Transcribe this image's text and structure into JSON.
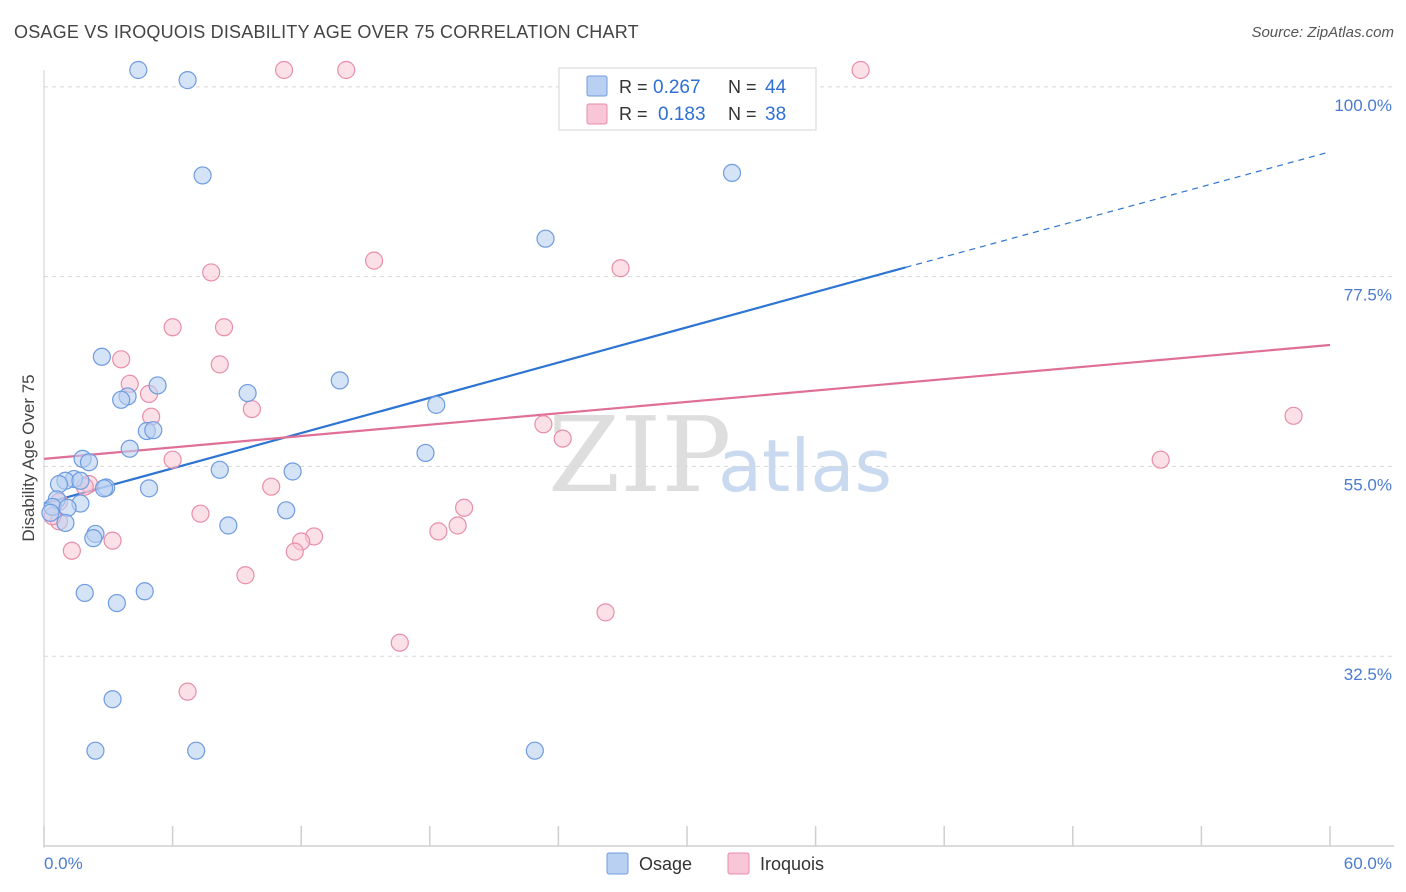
{
  "header": {
    "title": "OSAGE VS IROQUOIS DISABILITY AGE OVER 75 CORRELATION CHART",
    "source": "Source: ZipAtlas.com"
  },
  "watermark": {
    "zip": "ZIP",
    "atlas": "atlas"
  },
  "colors": {
    "osage_fill": "#b9d0f2",
    "osage_stroke": "#6f9be0",
    "osage_line": "#2d74d3",
    "iroquois_fill": "#f8c6d6",
    "iroquois_stroke": "#e88ea9",
    "iroquois_line": "#e06f98",
    "grid": "#d8d8d8",
    "tick_text": "#4a7bd0"
  },
  "legend": {
    "rows": [
      {
        "r_label": "R =",
        "r_value": "0.267",
        "n_label": "N =",
        "n_value": "44"
      },
      {
        "r_label": "R =",
        "r_value": "0.183",
        "n_label": "N =",
        "n_value": "38"
      }
    ]
  },
  "chart_data": {
    "type": "scatter",
    "title": "OSAGE VS IROQUOIS DISABILITY AGE OVER 75 CORRELATION CHART",
    "xlabel": "",
    "ylabel": "Disability Age Over 75",
    "xlim": [
      0,
      60
    ],
    "ylim": [
      10,
      102
    ],
    "x_tick_labels": [
      "0.0%",
      "60.0%"
    ],
    "y_ticks": [
      32.5,
      55.0,
      77.5,
      100.0
    ],
    "y_tick_labels": [
      "32.5%",
      "55.0%",
      "77.5%",
      "100.0%"
    ],
    "legend_position": "top-center",
    "series": [
      {
        "name": "Osage",
        "r": 0.267,
        "n": 44,
        "trend": {
          "x0": 0,
          "y0": 50.6,
          "x1": 40.2,
          "y1": 78.6,
          "dash_to_x": 60,
          "dash_to_y": 92.3
        },
        "points": [
          [
            4.4,
            102
          ],
          [
            6.7,
            100.8
          ],
          [
            7.4,
            89.5
          ],
          [
            32.1,
            89.8
          ],
          [
            23.4,
            82.0
          ],
          [
            2.7,
            68.0
          ],
          [
            5.3,
            64.6
          ],
          [
            3.9,
            63.3
          ],
          [
            3.6,
            62.9
          ],
          [
            9.5,
            63.7
          ],
          [
            13.8,
            65.2
          ],
          [
            18.3,
            62.3
          ],
          [
            4.8,
            59.2
          ],
          [
            5.1,
            59.3
          ],
          [
            4.0,
            57.1
          ],
          [
            17.8,
            56.6
          ],
          [
            1.8,
            55.9
          ],
          [
            2.1,
            55.5
          ],
          [
            8.2,
            54.6
          ],
          [
            11.6,
            54.4
          ],
          [
            1.4,
            53.5
          ],
          [
            1.0,
            53.3
          ],
          [
            1.7,
            53.3
          ],
          [
            0.7,
            52.9
          ],
          [
            2.9,
            52.5
          ],
          [
            2.8,
            52.4
          ],
          [
            4.9,
            52.4
          ],
          [
            0.6,
            51.1
          ],
          [
            1.7,
            50.6
          ],
          [
            0.4,
            50.2
          ],
          [
            1.1,
            50.1
          ],
          [
            0.3,
            49.5
          ],
          [
            11.3,
            49.8
          ],
          [
            1.0,
            48.3
          ],
          [
            2.4,
            47.0
          ],
          [
            8.6,
            48.0
          ],
          [
            2.3,
            46.5
          ],
          [
            1.9,
            40.0
          ],
          [
            3.4,
            38.8
          ],
          [
            4.7,
            40.2
          ],
          [
            3.2,
            27.4
          ],
          [
            2.4,
            21.3
          ],
          [
            7.1,
            21.3
          ],
          [
            22.9,
            21.3
          ]
        ]
      },
      {
        "name": "Iroquois",
        "r": 0.183,
        "n": 38,
        "trend": {
          "x0": 0,
          "y0": 55.9,
          "x1": 60,
          "y1": 69.4
        },
        "points": [
          [
            11.2,
            102
          ],
          [
            14.1,
            102
          ],
          [
            38.1,
            102
          ],
          [
            15.4,
            79.4
          ],
          [
            26.9,
            78.5
          ],
          [
            7.8,
            78.0
          ],
          [
            6.0,
            71.5
          ],
          [
            8.4,
            71.5
          ],
          [
            3.6,
            67.7
          ],
          [
            8.2,
            67.1
          ],
          [
            4.0,
            64.8
          ],
          [
            4.9,
            63.6
          ],
          [
            5.0,
            60.9
          ],
          [
            9.7,
            61.8
          ],
          [
            23.3,
            60.0
          ],
          [
            24.2,
            58.3
          ],
          [
            58.3,
            61.0
          ],
          [
            6.0,
            55.8
          ],
          [
            52.1,
            55.8
          ],
          [
            2.1,
            52.9
          ],
          [
            1.9,
            52.6
          ],
          [
            10.6,
            52.6
          ],
          [
            0.7,
            50.8
          ],
          [
            19.6,
            50.1
          ],
          [
            7.3,
            49.4
          ],
          [
            19.3,
            48.0
          ],
          [
            0.7,
            48.5
          ],
          [
            0.4,
            49.1
          ],
          [
            1.3,
            45.0
          ],
          [
            12.6,
            46.7
          ],
          [
            12.0,
            46.1
          ],
          [
            3.2,
            46.2
          ],
          [
            11.7,
            44.9
          ],
          [
            18.4,
            47.3
          ],
          [
            9.4,
            42.1
          ],
          [
            26.2,
            37.7
          ],
          [
            16.6,
            34.1
          ],
          [
            6.7,
            28.3
          ]
        ]
      }
    ]
  },
  "bottom_legend": {
    "items": [
      "Osage",
      "Iroquois"
    ]
  }
}
